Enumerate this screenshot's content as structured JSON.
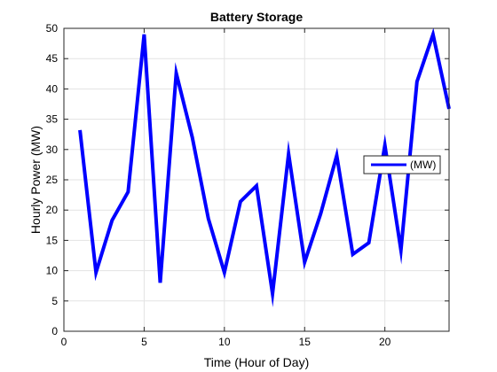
{
  "chart_data": {
    "type": "line",
    "title": "Battery Storage",
    "xlabel": "Time (Hour of Day)",
    "ylabel": "Hourly Power (MW)",
    "xlim": [
      0,
      24
    ],
    "ylim": [
      0,
      50
    ],
    "xticks": [
      0,
      5,
      10,
      15,
      20
    ],
    "yticks": [
      0,
      5,
      10,
      15,
      20,
      25,
      30,
      35,
      40,
      45,
      50
    ],
    "grid": true,
    "legend_position": "right",
    "series": [
      {
        "name": "(MW)",
        "color": "#0000ff",
        "x": [
          1,
          2,
          3,
          4,
          5,
          6,
          7,
          8,
          9,
          10,
          11,
          12,
          13,
          14,
          15,
          16,
          17,
          18,
          19,
          20,
          21,
          22,
          23,
          24
        ],
        "y": [
          33.2,
          9.7,
          18.3,
          23.0,
          49.0,
          8.0,
          42.6,
          32.0,
          18.6,
          9.7,
          21.4,
          24.0,
          6.2,
          29.3,
          11.4,
          19.4,
          29.0,
          12.7,
          14.6,
          30.7,
          13.4,
          41.2,
          49.0,
          36.7
        ]
      }
    ]
  }
}
